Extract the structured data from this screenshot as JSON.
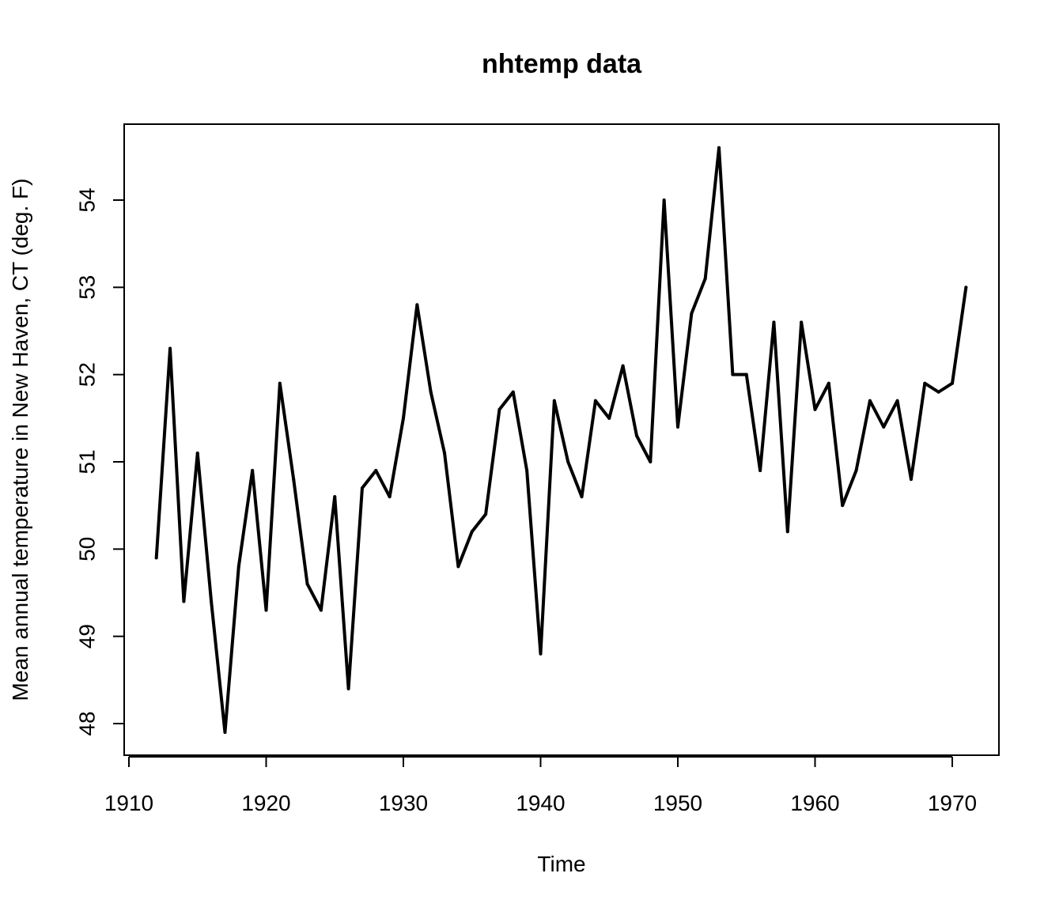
{
  "chart_data": {
    "type": "line",
    "title": "nhtemp data",
    "xlabel": "Time",
    "ylabel": "Mean annual temperature in New Haven, CT (deg. F)",
    "xlim": [
      1912,
      1971
    ],
    "ylim": [
      47.9,
      54.6
    ],
    "x_ticks": [
      "1910",
      "1920",
      "1930",
      "1940",
      "1950",
      "1960",
      "1970"
    ],
    "y_ticks": [
      "48",
      "49",
      "50",
      "51",
      "52",
      "53",
      "54"
    ],
    "grid": false,
    "legend": "none",
    "line_color": "#000000",
    "x": [
      1912,
      1913,
      1914,
      1915,
      1916,
      1917,
      1918,
      1919,
      1920,
      1921,
      1922,
      1923,
      1924,
      1925,
      1926,
      1927,
      1928,
      1929,
      1930,
      1931,
      1932,
      1933,
      1934,
      1935,
      1936,
      1937,
      1938,
      1939,
      1940,
      1941,
      1942,
      1943,
      1944,
      1945,
      1946,
      1947,
      1948,
      1949,
      1950,
      1951,
      1952,
      1953,
      1954,
      1955,
      1956,
      1957,
      1958,
      1959,
      1960,
      1961,
      1962,
      1963,
      1964,
      1965,
      1966,
      1967,
      1968,
      1969,
      1970,
      1971
    ],
    "series": [
      {
        "values": [
          49.9,
          52.3,
          49.4,
          51.1,
          49.4,
          47.9,
          49.8,
          50.9,
          49.3,
          51.9,
          50.8,
          49.6,
          49.3,
          50.6,
          48.4,
          50.7,
          50.9,
          50.6,
          51.5,
          52.8,
          51.8,
          51.1,
          49.8,
          50.2,
          50.4,
          51.6,
          51.8,
          50.9,
          48.8,
          51.7,
          51.0,
          50.6,
          51.7,
          51.5,
          52.1,
          51.3,
          51.0,
          54.0,
          51.4,
          52.7,
          53.1,
          54.6,
          52.0,
          52.0,
          50.9,
          52.6,
          50.2,
          52.6,
          51.6,
          51.9,
          50.5,
          50.9,
          51.7,
          51.4,
          51.7,
          50.8,
          51.9,
          51.8,
          51.9,
          53.0
        ]
      }
    ]
  }
}
